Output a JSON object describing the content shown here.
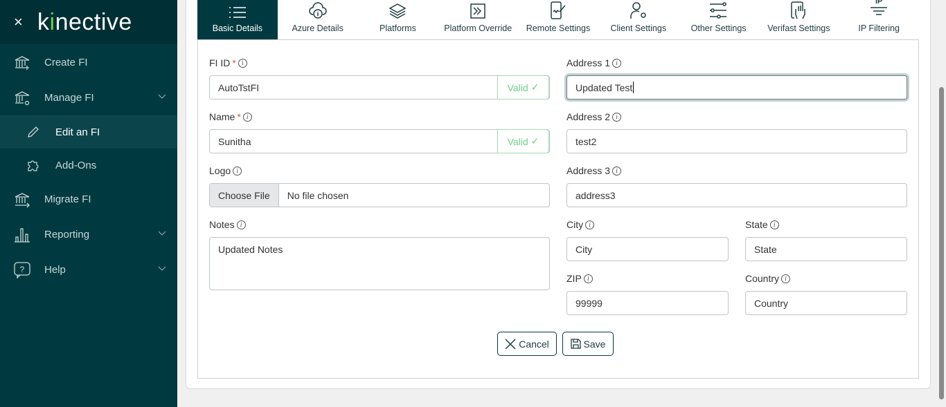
{
  "brand": {
    "close": "×",
    "logo_pre": "k",
    "logo_dot": "i",
    "logo_post": "nective"
  },
  "sidebar": {
    "items": [
      {
        "label": "Create FI",
        "icon": "bank-plus-icon"
      },
      {
        "label": "Manage FI",
        "icon": "bank-gear-icon",
        "expandable": true
      },
      {
        "label": "Edit an FI",
        "icon": "pencil-icon",
        "active": true
      },
      {
        "label": "Add-Ons",
        "icon": "puzzle-icon"
      },
      {
        "label": "Migrate FI",
        "icon": "bank-arrow-icon"
      },
      {
        "label": "Reporting",
        "icon": "bar-chart-icon",
        "expandable": true
      },
      {
        "label": "Help",
        "icon": "help-bubble-icon",
        "expandable": true
      }
    ]
  },
  "tabs": [
    {
      "label": "Basic Details",
      "active": true
    },
    {
      "label": "Azure Details"
    },
    {
      "label": "Platforms"
    },
    {
      "label": "Platform Override"
    },
    {
      "label": "Remote Settings"
    },
    {
      "label": "Client Settings"
    },
    {
      "label": "Other Settings"
    },
    {
      "label": "Verifast Settings"
    },
    {
      "label": "IP Filtering",
      "icon_text": "IP"
    }
  ],
  "form": {
    "fi_id": {
      "label": "FI ID",
      "required": "*",
      "value": "AutoTstFI",
      "status": "Valid"
    },
    "name": {
      "label": "Name",
      "required": "*",
      "value": "Sunitha",
      "status": "Valid"
    },
    "logo": {
      "label": "Logo",
      "button": "Choose File",
      "value": "No file chosen"
    },
    "notes": {
      "label": "Notes",
      "value": "Updated Notes"
    },
    "address1": {
      "label": "Address 1",
      "value": "Updated Test"
    },
    "address2": {
      "label": "Address 2",
      "value": "test2"
    },
    "address3": {
      "label": "Address 3",
      "value": "address3"
    },
    "city": {
      "label": "City",
      "value": "City"
    },
    "state": {
      "label": "State",
      "value": "State"
    },
    "zip": {
      "label": "ZIP",
      "value": "99999"
    },
    "country": {
      "label": "Country",
      "value": "Country"
    },
    "info_glyph": "i",
    "check": "✓"
  },
  "actions": {
    "cancel": "Cancel",
    "save": "Save"
  },
  "colors": {
    "primary": "#003a40",
    "valid": "#6fcf8a",
    "required": "#d9534f"
  }
}
